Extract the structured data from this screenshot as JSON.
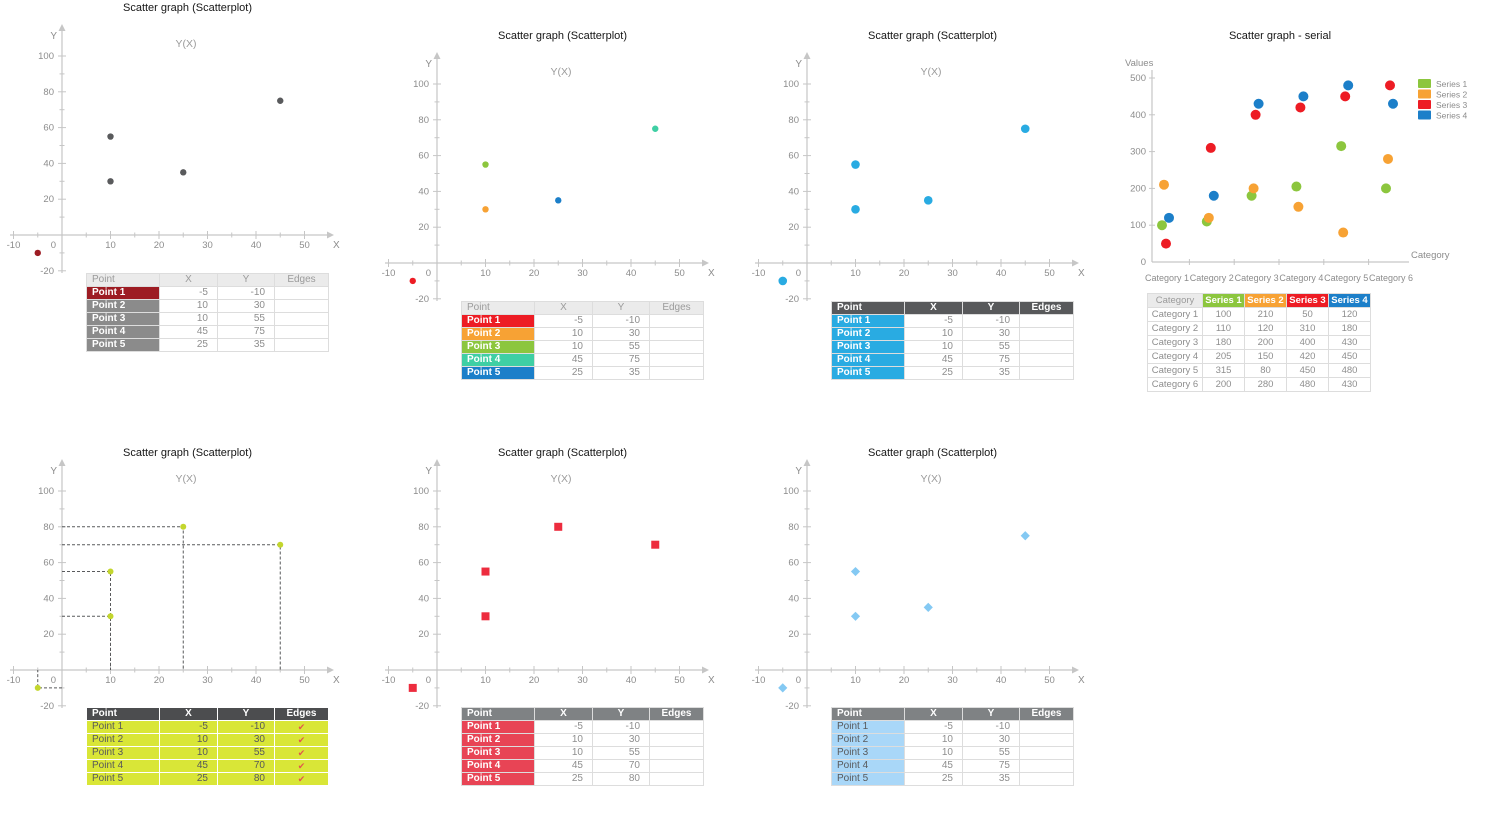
{
  "page_background": "#ffffff",
  "axis_color": "#c6c6c6",
  "tick_label_color": "#8c8c8c",
  "subtitle_color": "#9b9b9b",
  "chart_data": [
    {
      "id": "scatterplot-gray",
      "type": "scatter",
      "title": "Scatter graph (Scatterplot)",
      "subtitle": "Y(X)",
      "x_axis_label": "X",
      "y_axis_label": "Y",
      "x_ticks": [
        -10,
        0,
        10,
        20,
        30,
        40,
        50
      ],
      "y_ticks": [
        -20,
        0,
        20,
        40,
        60,
        80,
        100
      ],
      "marker": "circle",
      "marker_size": 3.2,
      "points": [
        {
          "label": "Point 1",
          "x": -5,
          "y": -10,
          "color": "#9d1c23"
        },
        {
          "label": "Point 2",
          "x": 10,
          "y": 30,
          "color": "#595a5c"
        },
        {
          "label": "Point 3",
          "x": 10,
          "y": 55,
          "color": "#595a5c"
        },
        {
          "label": "Point 4",
          "x": 45,
          "y": 75,
          "color": "#595a5c"
        },
        {
          "label": "Point 5",
          "x": 25,
          "y": 35,
          "color": "#595a5c"
        }
      ],
      "table": {
        "headers": [
          "Point",
          "X",
          "Y",
          "Edges"
        ],
        "header_bg": "#ebebeb",
        "header_color": "#9b9b9b",
        "header_bold": false,
        "rows": [
          {
            "label": "Point 1",
            "x": "-5",
            "y": "-10",
            "edges": "",
            "bg": "#9d1c23",
            "color": "#ffffff"
          },
          {
            "label": "Point 2",
            "x": "10",
            "y": "30",
            "edges": "",
            "bg": "#8b8b8b",
            "color": "#ffffff"
          },
          {
            "label": "Point 3",
            "x": "10",
            "y": "55",
            "edges": "",
            "bg": "#8b8b8b",
            "color": "#ffffff"
          },
          {
            "label": "Point 4",
            "x": "45",
            "y": "75",
            "edges": "",
            "bg": "#8b8b8b",
            "color": "#ffffff"
          },
          {
            "label": "Point 5",
            "x": "25",
            "y": "35",
            "edges": "",
            "bg": "#8b8b8b",
            "color": "#ffffff"
          }
        ]
      }
    },
    {
      "id": "scatterplot-multicolor",
      "type": "scatter",
      "title": "Scatter graph (Scatterplot)",
      "subtitle": "Y(X)",
      "x_axis_label": "X",
      "y_axis_label": "Y",
      "x_ticks": [
        -10,
        0,
        10,
        20,
        30,
        40,
        50
      ],
      "y_ticks": [
        -20,
        0,
        20,
        40,
        60,
        80,
        100
      ],
      "marker": "circle",
      "marker_size": 3.2,
      "points": [
        {
          "label": "Point 1",
          "x": -5,
          "y": -10,
          "color": "#ed1c24"
        },
        {
          "label": "Point 2",
          "x": 10,
          "y": 30,
          "color": "#f7a234"
        },
        {
          "label": "Point 3",
          "x": 10,
          "y": 55,
          "color": "#8cc63e"
        },
        {
          "label": "Point 4",
          "x": 45,
          "y": 75,
          "color": "#3fcfa4"
        },
        {
          "label": "Point 5",
          "x": 25,
          "y": 35,
          "color": "#1c7fc9"
        }
      ],
      "table": {
        "headers": [
          "Point",
          "X",
          "Y",
          "Edges"
        ],
        "header_bg": "#ebebeb",
        "header_color": "#9b9b9b",
        "header_bold": false,
        "rows": [
          {
            "label": "Point 1",
            "x": "-5",
            "y": "-10",
            "edges": "",
            "bg": "#ed1c24",
            "color": "#ffffff"
          },
          {
            "label": "Point 2",
            "x": "10",
            "y": "30",
            "edges": "",
            "bg": "#f7a234",
            "color": "#ffffff"
          },
          {
            "label": "Point 3",
            "x": "10",
            "y": "55",
            "edges": "",
            "bg": "#8cc63e",
            "color": "#ffffff"
          },
          {
            "label": "Point 4",
            "x": "45",
            "y": "75",
            "edges": "",
            "bg": "#3fcfa4",
            "color": "#ffffff"
          },
          {
            "label": "Point 5",
            "x": "25",
            "y": "35",
            "edges": "",
            "bg": "#1c7fc9",
            "color": "#ffffff"
          }
        ]
      }
    },
    {
      "id": "scatterplot-blue",
      "type": "scatter",
      "title": "Scatter graph (Scatterplot)",
      "subtitle": "Y(X)",
      "x_axis_label": "X",
      "y_axis_label": "Y",
      "x_ticks": [
        -10,
        0,
        10,
        20,
        30,
        40,
        50
      ],
      "y_ticks": [
        -20,
        0,
        20,
        40,
        60,
        80,
        100
      ],
      "marker": "circle",
      "marker_size": 4.3,
      "points": [
        {
          "label": "Point 1",
          "x": -5,
          "y": -10,
          "color": "#29abe2"
        },
        {
          "label": "Point 2",
          "x": 10,
          "y": 30,
          "color": "#29abe2"
        },
        {
          "label": "Point 3",
          "x": 10,
          "y": 55,
          "color": "#29abe2"
        },
        {
          "label": "Point 4",
          "x": 45,
          "y": 75,
          "color": "#29abe2"
        },
        {
          "label": "Point 5",
          "x": 25,
          "y": 35,
          "color": "#29abe2"
        }
      ],
      "table": {
        "headers": [
          "Point",
          "X",
          "Y",
          "Edges"
        ],
        "header_bg": "#58595b",
        "header_color": "#ffffff",
        "header_bold": true,
        "rows": [
          {
            "label": "Point 1",
            "x": "-5",
            "y": "-10",
            "edges": "",
            "bg": "#29abe2",
            "color": "#ffffff"
          },
          {
            "label": "Point 2",
            "x": "10",
            "y": "30",
            "edges": "",
            "bg": "#29abe2",
            "color": "#ffffff"
          },
          {
            "label": "Point 3",
            "x": "10",
            "y": "55",
            "edges": "",
            "bg": "#29abe2",
            "color": "#ffffff"
          },
          {
            "label": "Point 4",
            "x": "45",
            "y": "75",
            "edges": "",
            "bg": "#29abe2",
            "color": "#ffffff"
          },
          {
            "label": "Point 5",
            "x": "25",
            "y": "35",
            "edges": "",
            "bg": "#29abe2",
            "color": "#ffffff"
          }
        ]
      }
    },
    {
      "id": "scatter-serial",
      "type": "scatter-serial",
      "title": "Scatter graph - serial",
      "values_axis_label": "Values",
      "category_axis_label": "Category",
      "y_ticks": [
        0,
        100,
        200,
        300,
        400,
        500
      ],
      "categories": [
        "Category 1",
        "Category 2",
        "Category 3",
        "Category 4",
        "Category 5",
        "Category 6"
      ],
      "series": [
        {
          "name": "Series 1",
          "color": "#8cc63e",
          "values": [
            100,
            110,
            180,
            205,
            315,
            200
          ]
        },
        {
          "name": "Series 2",
          "color": "#f7a234",
          "values": [
            210,
            120,
            200,
            150,
            80,
            280
          ]
        },
        {
          "name": "Series 3",
          "color": "#ed1c24",
          "values": [
            50,
            310,
            400,
            420,
            450,
            480
          ]
        },
        {
          "name": "Series 4",
          "color": "#1c7fc9",
          "values": [
            120,
            180,
            430,
            450,
            480,
            430
          ]
        }
      ],
      "legend_position": "top-right",
      "table": {
        "corner_header": "Category",
        "header_bg": "#ebebeb",
        "header_color": "#9b9b9b"
      }
    },
    {
      "id": "scatterplot-edges",
      "type": "scatter",
      "title": "Scatter graph (Scatterplot)",
      "subtitle": "Y(X)",
      "x_axis_label": "X",
      "y_axis_label": "Y",
      "x_ticks": [
        -10,
        0,
        10,
        20,
        30,
        40,
        50
      ],
      "y_ticks": [
        -20,
        0,
        20,
        40,
        60,
        80,
        100
      ],
      "marker": "circle",
      "marker_size": 3,
      "edge_line_color": "#595a5c",
      "points": [
        {
          "label": "Point 1",
          "x": -5,
          "y": -10,
          "color": "#c3d62d",
          "edges": true
        },
        {
          "label": "Point 2",
          "x": 10,
          "y": 30,
          "color": "#c3d62d",
          "edges": true
        },
        {
          "label": "Point 3",
          "x": 10,
          "y": 55,
          "color": "#c3d62d",
          "edges": true
        },
        {
          "label": "Point 4",
          "x": 45,
          "y": 70,
          "color": "#c3d62d",
          "edges": true
        },
        {
          "label": "Point 5",
          "x": 25,
          "y": 80,
          "color": "#c3d62d",
          "edges": true
        }
      ],
      "table": {
        "headers": [
          "Point",
          "X",
          "Y",
          "Edges"
        ],
        "header_bg": "#4c4d4f",
        "header_color": "#ffffff",
        "header_bold": true,
        "cell_bg": "#d9e637",
        "value_color": "#58595b",
        "grid_color": "#ffffff",
        "edge_mark_color": "#e2574b",
        "rows": [
          {
            "label": "Point 1",
            "x": "-5",
            "y": "-10",
            "edges": "✔",
            "bg": "#d9e637",
            "color": "#58595b"
          },
          {
            "label": "Point 2",
            "x": "10",
            "y": "30",
            "edges": "✔",
            "bg": "#d9e637",
            "color": "#58595b"
          },
          {
            "label": "Point 3",
            "x": "10",
            "y": "55",
            "edges": "✔",
            "bg": "#d9e637",
            "color": "#58595b"
          },
          {
            "label": "Point 4",
            "x": "45",
            "y": "70",
            "edges": "✔",
            "bg": "#d9e637",
            "color": "#58595b"
          },
          {
            "label": "Point 5",
            "x": "25",
            "y": "80",
            "edges": "✔",
            "bg": "#d9e637",
            "color": "#58595b"
          }
        ]
      }
    },
    {
      "id": "scatterplot-red-squares",
      "type": "scatter",
      "title": "Scatter graph (Scatterplot)",
      "subtitle": "Y(X)",
      "x_axis_label": "X",
      "y_axis_label": "Y",
      "x_ticks": [
        -10,
        0,
        10,
        20,
        30,
        40,
        50
      ],
      "y_ticks": [
        -20,
        0,
        20,
        40,
        60,
        80,
        100
      ],
      "marker": "square",
      "marker_size": 8,
      "points": [
        {
          "label": "Point 1",
          "x": -5,
          "y": -10,
          "color": "#ed2c3e"
        },
        {
          "label": "Point 2",
          "x": 10,
          "y": 30,
          "color": "#ed2c3e"
        },
        {
          "label": "Point 3",
          "x": 10,
          "y": 55,
          "color": "#ed2c3e"
        },
        {
          "label": "Point 4",
          "x": 45,
          "y": 70,
          "color": "#ed2c3e"
        },
        {
          "label": "Point 5",
          "x": 25,
          "y": 80,
          "color": "#ed2c3e"
        }
      ],
      "table": {
        "headers": [
          "Point",
          "X",
          "Y",
          "Edges"
        ],
        "header_bg": "#7f8284",
        "header_color": "#ffffff",
        "header_bold": true,
        "rows": [
          {
            "label": "Point 1",
            "x": "-5",
            "y": "-10",
            "edges": "",
            "bg": "#e84455",
            "color": "#ffffff"
          },
          {
            "label": "Point 2",
            "x": "10",
            "y": "30",
            "edges": "",
            "bg": "#e84455",
            "color": "#ffffff"
          },
          {
            "label": "Point 3",
            "x": "10",
            "y": "55",
            "edges": "",
            "bg": "#e84455",
            "color": "#ffffff"
          },
          {
            "label": "Point 4",
            "x": "45",
            "y": "70",
            "edges": "",
            "bg": "#e84455",
            "color": "#ffffff"
          },
          {
            "label": "Point 5",
            "x": "25",
            "y": "80",
            "edges": "",
            "bg": "#e84455",
            "color": "#ffffff"
          }
        ]
      }
    },
    {
      "id": "scatterplot-lightblue-diamonds",
      "type": "scatter",
      "title": "Scatter graph (Scatterplot)",
      "subtitle": "Y(X)",
      "x_axis_label": "X",
      "y_axis_label": "Y",
      "x_ticks": [
        -10,
        0,
        10,
        20,
        30,
        40,
        50
      ],
      "y_ticks": [
        -20,
        0,
        20,
        40,
        60,
        80,
        100
      ],
      "marker": "diamond",
      "marker_size": 4.6,
      "points": [
        {
          "label": "Point 1",
          "x": -5,
          "y": -10,
          "color": "#84c9f3"
        },
        {
          "label": "Point 2",
          "x": 10,
          "y": 30,
          "color": "#84c9f3"
        },
        {
          "label": "Point 3",
          "x": 10,
          "y": 55,
          "color": "#84c9f3"
        },
        {
          "label": "Point 4",
          "x": 45,
          "y": 75,
          "color": "#84c9f3"
        },
        {
          "label": "Point 5",
          "x": 25,
          "y": 35,
          "color": "#84c9f3"
        }
      ],
      "table": {
        "headers": [
          "Point",
          "X",
          "Y",
          "Edges"
        ],
        "header_bg": "#7f8284",
        "header_color": "#ffffff",
        "header_bold": true,
        "rows": [
          {
            "label": "Point 1",
            "x": "-5",
            "y": "-10",
            "edges": "",
            "bg": "#a9d7f8",
            "color": "#58595b"
          },
          {
            "label": "Point 2",
            "x": "10",
            "y": "30",
            "edges": "",
            "bg": "#a9d7f8",
            "color": "#58595b"
          },
          {
            "label": "Point 3",
            "x": "10",
            "y": "55",
            "edges": "",
            "bg": "#a9d7f8",
            "color": "#58595b"
          },
          {
            "label": "Point 4",
            "x": "45",
            "y": "75",
            "edges": "",
            "bg": "#a9d7f8",
            "color": "#58595b"
          },
          {
            "label": "Point 5",
            "x": "25",
            "y": "35",
            "edges": "",
            "bg": "#a9d7f8",
            "color": "#58595b"
          }
        ]
      }
    }
  ]
}
